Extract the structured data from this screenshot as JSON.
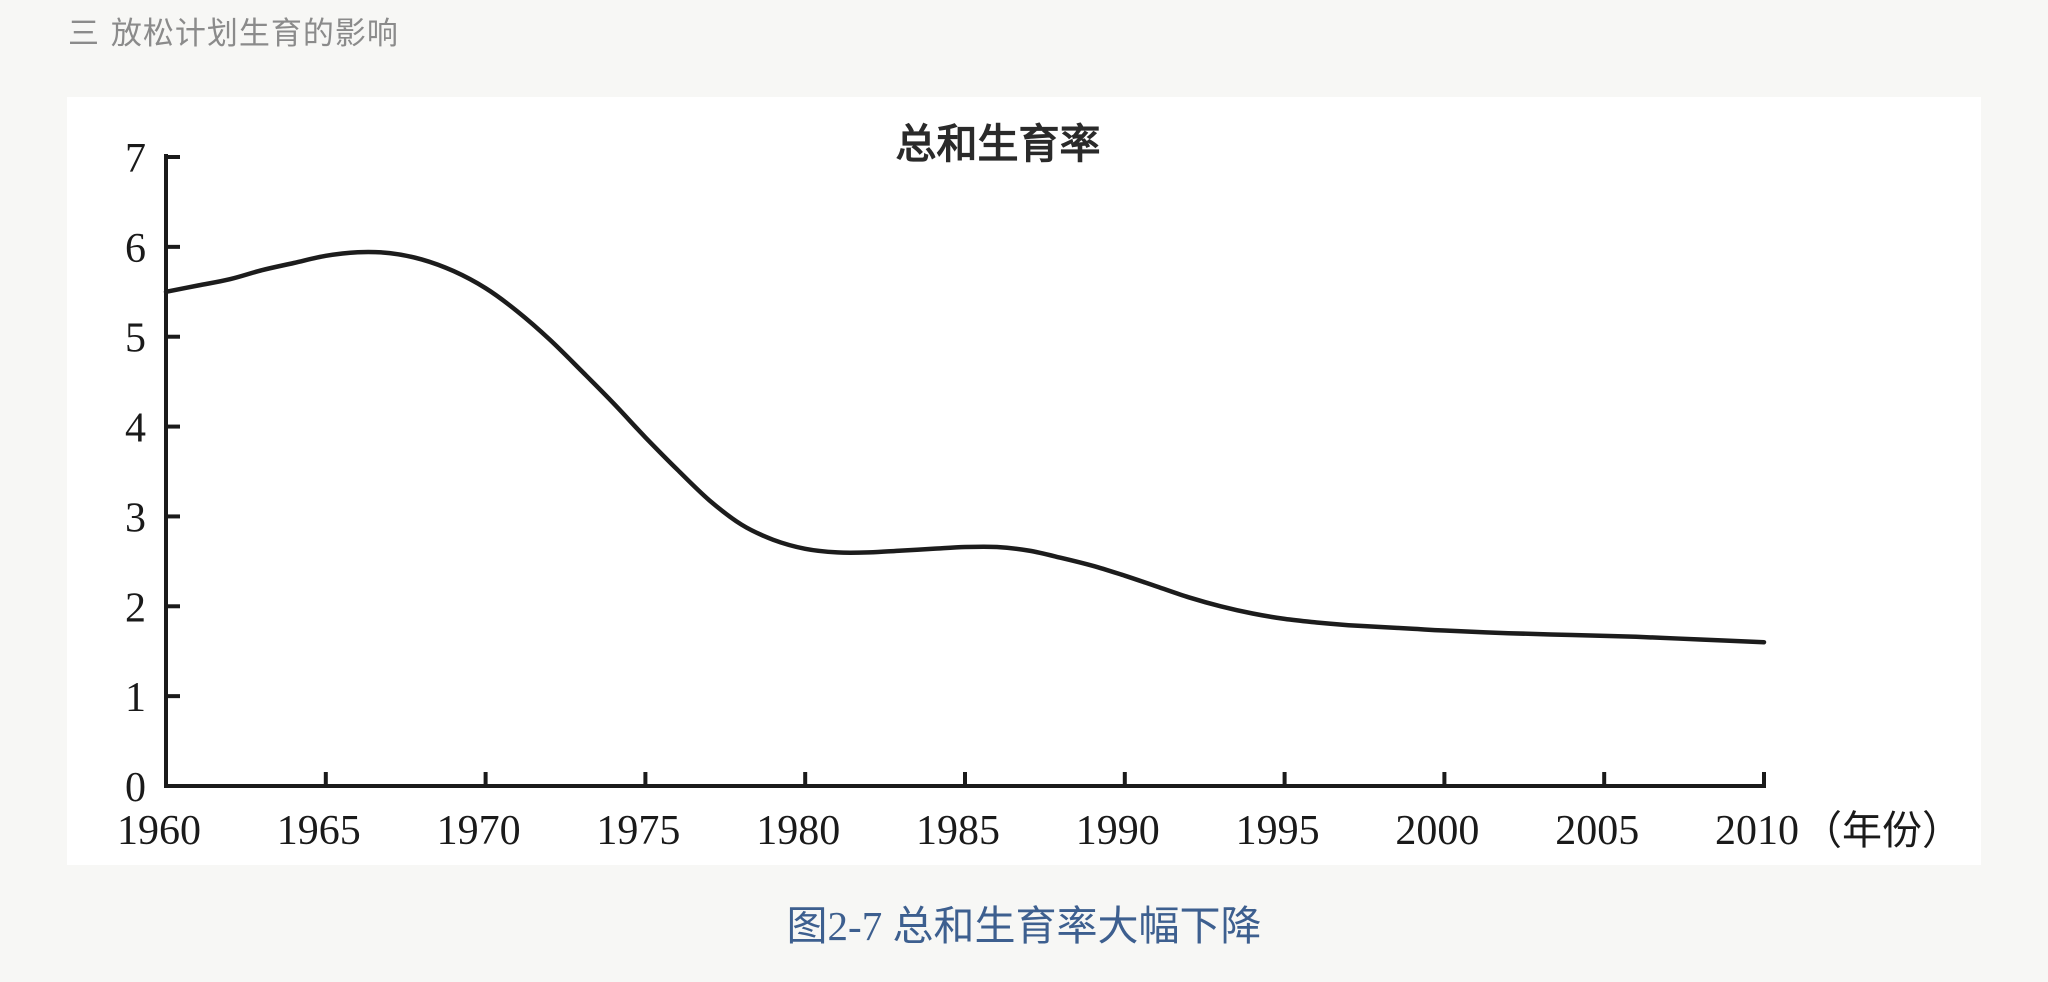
{
  "header": {
    "section_title": "三 放松计划生育的影响"
  },
  "figure": {
    "caption": "图2-7 总和生育率大幅下降"
  },
  "chart_data": {
    "type": "line",
    "title": "总和生育率",
    "xlabel": "（年份）",
    "ylabel": "",
    "xlim": [
      1960,
      2010
    ],
    "ylim": [
      0,
      7
    ],
    "x_ticks": [
      "1960",
      "1965",
      "1970",
      "1975",
      "1980",
      "1985",
      "1990",
      "1995",
      "2000",
      "2005",
      "2010"
    ],
    "y_ticks": [
      "0",
      "1",
      "2",
      "3",
      "4",
      "5",
      "6",
      "7"
    ],
    "grid": false,
    "legend": "none",
    "line_color": "#1c1c1c",
    "series": [
      {
        "x": [
          1960,
          1961,
          1962,
          1963,
          1964,
          1965,
          1966,
          1967,
          1968,
          1969,
          1970,
          1971,
          1972,
          1973,
          1974,
          1975,
          1976,
          1977,
          1978,
          1979,
          1980,
          1981,
          1982,
          1983,
          1984,
          1985,
          1986,
          1987,
          1988,
          1989,
          1990,
          1991,
          1992,
          1993,
          1994,
          1995,
          1996,
          1997,
          1998,
          1999,
          2000,
          2002,
          2004,
          2006,
          2008,
          2010
        ],
        "values": [
          5.5,
          5.57,
          5.64,
          5.74,
          5.82,
          5.9,
          5.94,
          5.93,
          5.86,
          5.73,
          5.54,
          5.28,
          4.97,
          4.62,
          4.26,
          3.88,
          3.52,
          3.18,
          2.91,
          2.74,
          2.64,
          2.6,
          2.6,
          2.62,
          2.64,
          2.66,
          2.66,
          2.62,
          2.54,
          2.45,
          2.34,
          2.22,
          2.1,
          2.0,
          1.92,
          1.86,
          1.82,
          1.79,
          1.77,
          1.75,
          1.73,
          1.7,
          1.68,
          1.66,
          1.63,
          1.6
        ]
      }
    ]
  }
}
